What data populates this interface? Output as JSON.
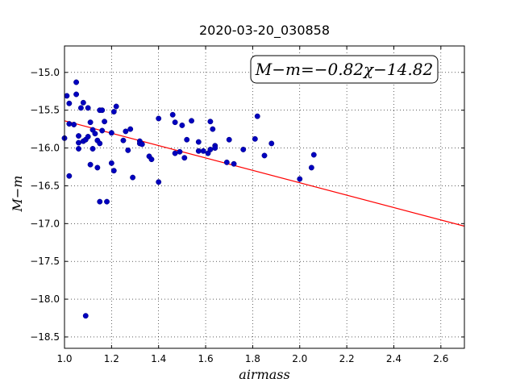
{
  "chart_data": {
    "type": "scatter",
    "title": "2020-03-20_030858",
    "xlabel": "airmass",
    "ylabel": "M−m",
    "xlim": [
      1.0,
      2.7
    ],
    "ylim": [
      -18.65,
      -14.65
    ],
    "xticks": [
      1.0,
      1.2,
      1.4,
      1.6,
      1.8,
      2.0,
      2.2,
      2.4,
      2.6
    ],
    "xtick_labels": [
      "1.0",
      "1.2",
      "1.4",
      "1.6",
      "1.8",
      "2.0",
      "2.2",
      "2.4",
      "2.6"
    ],
    "yticks": [
      -15.0,
      -15.5,
      -16.0,
      -16.5,
      -17.0,
      -17.5,
      -18.0,
      -18.5
    ],
    "ytick_labels": [
      "−15.0",
      "−15.5",
      "−16.0",
      "−16.5",
      "−17.0",
      "−17.5",
      "−18.0",
      "−18.5"
    ],
    "grid": true,
    "annotation": "M−m=−0.82χ−14.82",
    "fit_line": {
      "slope": -0.82,
      "intercept": -14.82,
      "color": "#ff0000"
    },
    "series": [
      {
        "color": "#0000bf",
        "points": [
          [
            1.0,
            -15.87
          ],
          [
            1.01,
            -15.31
          ],
          [
            1.02,
            -15.41
          ],
          [
            1.02,
            -15.68
          ],
          [
            1.02,
            -16.37
          ],
          [
            1.04,
            -15.69
          ],
          [
            1.05,
            -15.13
          ],
          [
            1.05,
            -15.29
          ],
          [
            1.06,
            -15.84
          ],
          [
            1.06,
            -15.93
          ],
          [
            1.06,
            -16.01
          ],
          [
            1.07,
            -15.47
          ],
          [
            1.08,
            -15.4
          ],
          [
            1.08,
            -15.91
          ],
          [
            1.09,
            -15.89
          ],
          [
            1.09,
            -18.22
          ],
          [
            1.1,
            -15.47
          ],
          [
            1.1,
            -15.85
          ],
          [
            1.11,
            -16.22
          ],
          [
            1.11,
            -15.66
          ],
          [
            1.12,
            -15.76
          ],
          [
            1.12,
            -16.01
          ],
          [
            1.13,
            -15.81
          ],
          [
            1.14,
            -15.9
          ],
          [
            1.14,
            -16.26
          ],
          [
            1.15,
            -15.5
          ],
          [
            1.15,
            -15.94
          ],
          [
            1.15,
            -16.71
          ],
          [
            1.16,
            -15.77
          ],
          [
            1.16,
            -15.5
          ],
          [
            1.17,
            -15.65
          ],
          [
            1.18,
            -16.71
          ],
          [
            1.2,
            -15.8
          ],
          [
            1.2,
            -16.2
          ],
          [
            1.21,
            -16.3
          ],
          [
            1.21,
            -15.52
          ],
          [
            1.22,
            -15.45
          ],
          [
            1.25,
            -15.9
          ],
          [
            1.26,
            -15.78
          ],
          [
            1.27,
            -16.03
          ],
          [
            1.28,
            -15.75
          ],
          [
            1.29,
            -16.39
          ],
          [
            1.32,
            -15.91
          ],
          [
            1.32,
            -15.94
          ],
          [
            1.33,
            -15.95
          ],
          [
            1.36,
            -16.11
          ],
          [
            1.37,
            -16.15
          ],
          [
            1.4,
            -15.61
          ],
          [
            1.4,
            -16.45
          ],
          [
            1.46,
            -15.56
          ],
          [
            1.47,
            -15.66
          ],
          [
            1.47,
            -16.07
          ],
          [
            1.49,
            -16.05
          ],
          [
            1.5,
            -15.7
          ],
          [
            1.51,
            -16.13
          ],
          [
            1.52,
            -15.89
          ],
          [
            1.54,
            -15.64
          ],
          [
            1.57,
            -16.04
          ],
          [
            1.57,
            -15.92
          ],
          [
            1.59,
            -16.04
          ],
          [
            1.61,
            -16.07
          ],
          [
            1.62,
            -15.65
          ],
          [
            1.62,
            -16.02
          ],
          [
            1.63,
            -15.75
          ],
          [
            1.64,
            -15.97
          ],
          [
            1.64,
            -16.0
          ],
          [
            1.69,
            -16.19
          ],
          [
            1.7,
            -15.89
          ],
          [
            1.72,
            -16.21
          ],
          [
            1.76,
            -16.02
          ],
          [
            1.81,
            -15.88
          ],
          [
            1.82,
            -15.58
          ],
          [
            1.85,
            -16.1
          ],
          [
            1.88,
            -15.94
          ],
          [
            2.0,
            -16.41
          ],
          [
            2.05,
            -16.26
          ],
          [
            2.06,
            -16.09
          ]
        ]
      }
    ]
  }
}
